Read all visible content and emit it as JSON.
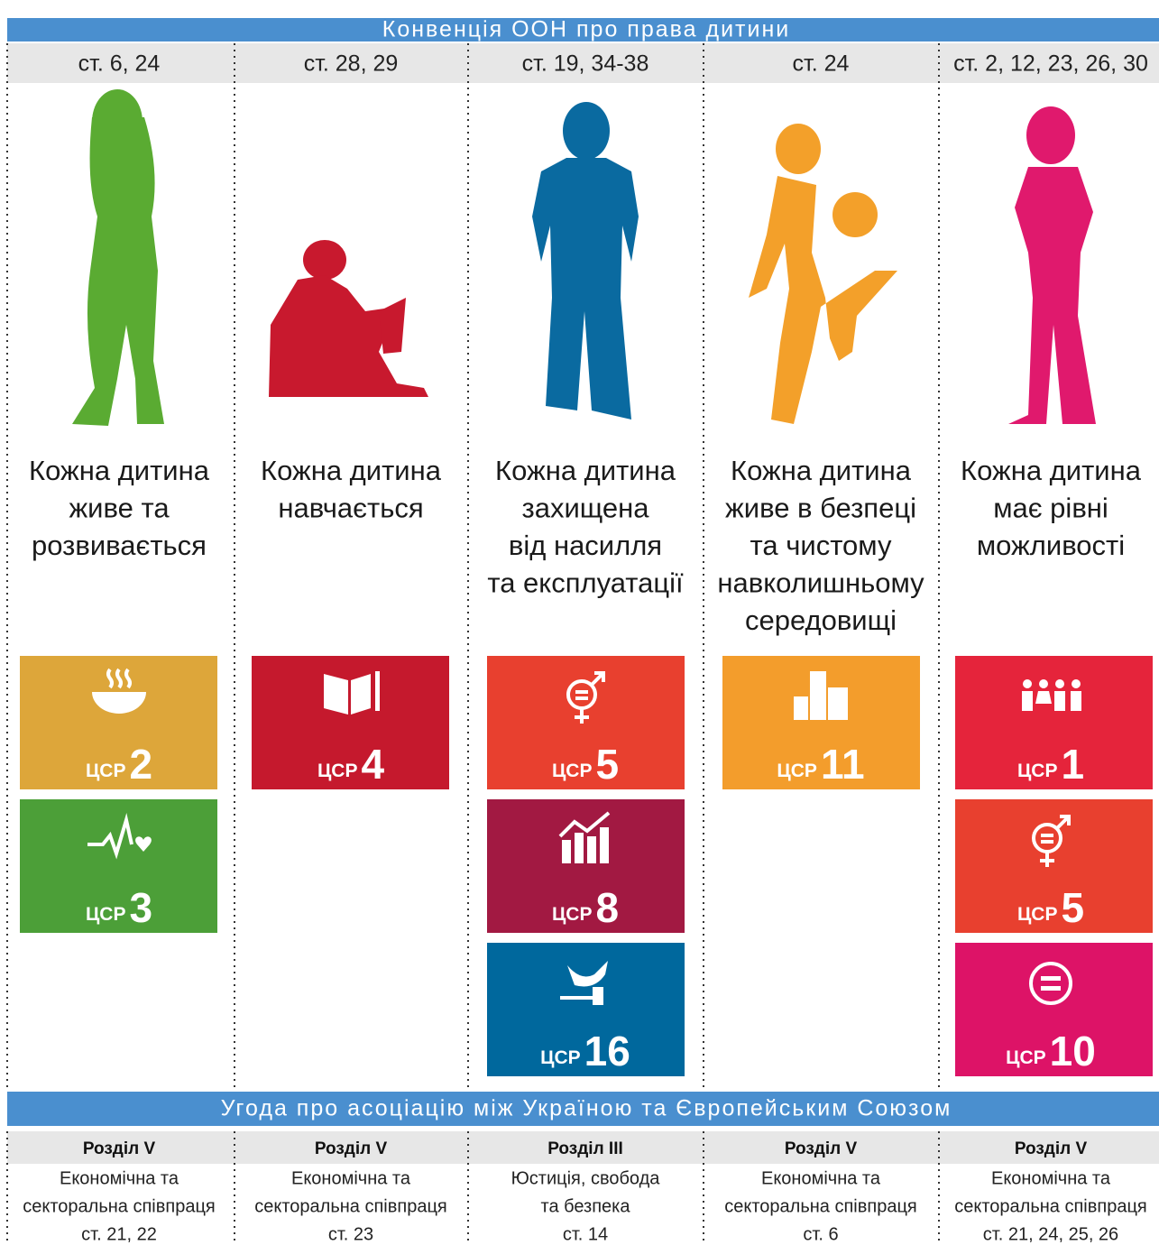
{
  "header": {
    "title": "Конвенція ООН про права дитини"
  },
  "columns": [
    {
      "articles": "ст. 6, 24",
      "caption": [
        "Кожна дитина",
        "живе та",
        "розвивається"
      ],
      "goals": [
        {
          "prefix": "ЦСР",
          "number": "2",
          "color": "#dda63a"
        },
        {
          "prefix": "ЦСР",
          "number": "3",
          "color": "#4c9f38"
        }
      ]
    },
    {
      "articles": "ст. 28, 29",
      "caption": [
        "Кожна дитина",
        "навчається"
      ],
      "goals": [
        {
          "prefix": "ЦСР",
          "number": "4",
          "color": "#c5192d"
        }
      ]
    },
    {
      "articles": "ст. 19, 34-38",
      "caption": [
        "Кожна дитина",
        "захищена",
        "від насилля",
        "та експлуатації"
      ],
      "goals": [
        {
          "prefix": "ЦСР",
          "number": "5",
          "color": "#e8402f"
        },
        {
          "prefix": "ЦСР",
          "number": "8",
          "color": "#a21942"
        },
        {
          "prefix": "ЦСР",
          "number": "16",
          "color": "#00689d"
        }
      ]
    },
    {
      "articles": "ст. 24",
      "caption": [
        "Кожна дитина",
        "живе в безпеці",
        "та чистому",
        "навколишньому",
        "середовищі"
      ],
      "goals": [
        {
          "prefix": "ЦСР",
          "number": "11",
          "color": "#f39d2c"
        }
      ]
    },
    {
      "articles": "ст. 2, 12, 23, 26, 30",
      "caption": [
        "Кожна дитина",
        "має рівні",
        "можливості"
      ],
      "goals": [
        {
          "prefix": "ЦСР",
          "number": "1",
          "color": "#e5243b"
        },
        {
          "prefix": "ЦСР",
          "number": "5",
          "color": "#e8402f"
        },
        {
          "prefix": "ЦСР",
          "number": "10",
          "color": "#dd1367"
        }
      ]
    }
  ],
  "footer": {
    "title": "Угода про асоціацію між Україною та Європейським Союзом",
    "columns": [
      {
        "section": "Розділ V",
        "lines": [
          "Економічна та",
          "секторальна співпраця",
          "ст. 21, 22"
        ]
      },
      {
        "section": "Розділ V",
        "lines": [
          "Економічна та",
          "секторальна співпраця",
          "ст. 23"
        ]
      },
      {
        "section": "Розділ III",
        "lines": [
          "Юстиція, свобода",
          "та безпека",
          "ст. 14"
        ]
      },
      {
        "section": "Розділ V",
        "lines": [
          "Економічна та",
          "секторальна співпраця",
          "ст. 6"
        ]
      },
      {
        "section": "Розділ V",
        "lines": [
          "Економічна та",
          "секторальна співпраця",
          "ст. 21, 24, 25, 26"
        ]
      }
    ]
  }
}
